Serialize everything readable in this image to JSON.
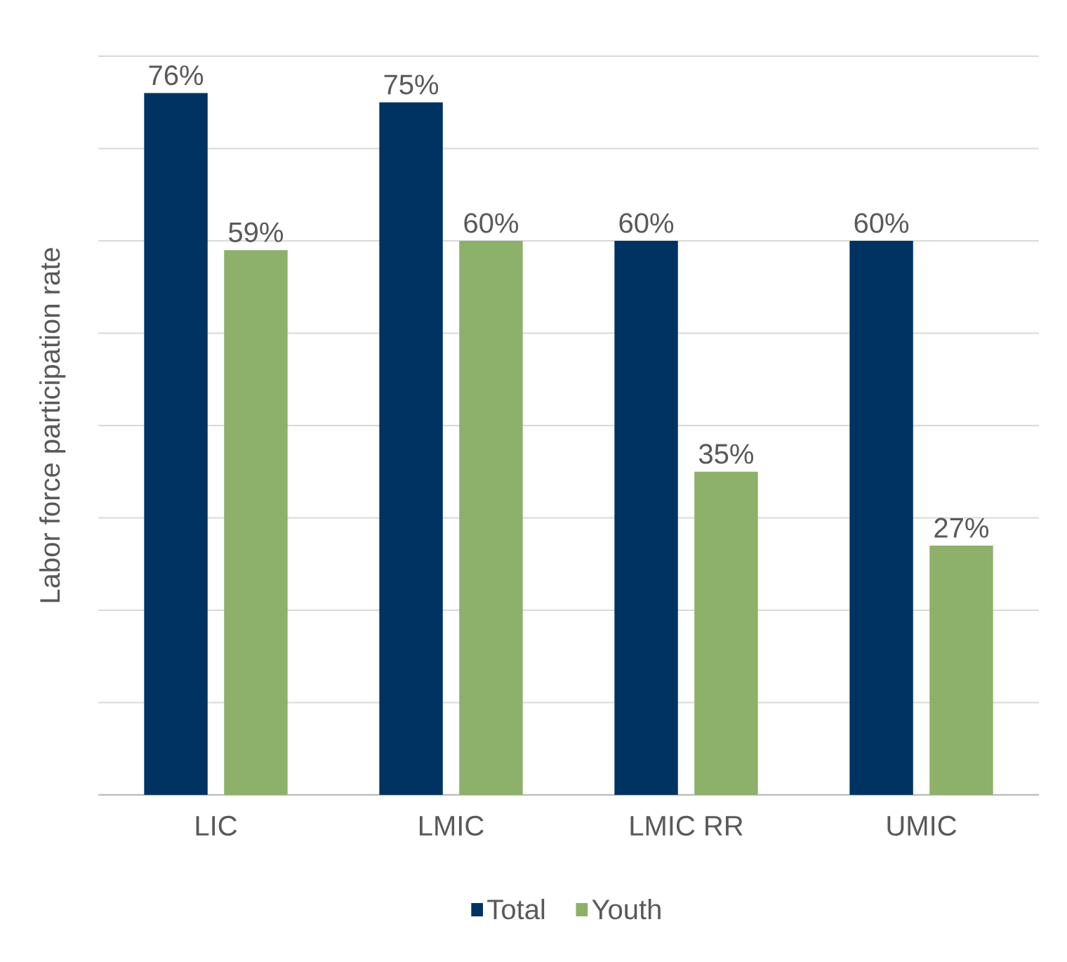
{
  "chart_data": {
    "type": "bar",
    "ylabel": "Labor force participation rate",
    "categories": [
      "LIC",
      "LMIC",
      "LMIC RR",
      "UMIC"
    ],
    "series": [
      {
        "name": "Total",
        "color": "#003361",
        "values": [
          76,
          75,
          60,
          60
        ],
        "value_labels": [
          "76%",
          "75%",
          "60%",
          "60%"
        ]
      },
      {
        "name": "Youth",
        "color": "#8db06b",
        "values": [
          59,
          60,
          35,
          27
        ],
        "value_labels": [
          "59%",
          "60%",
          "35%",
          "27%"
        ]
      }
    ],
    "ylim": [
      0,
      80
    ],
    "yticks": [
      0,
      10,
      20,
      30,
      40,
      50,
      60,
      70,
      80
    ],
    "grid": "y",
    "legend": "bottom",
    "tick_labels": "x"
  }
}
